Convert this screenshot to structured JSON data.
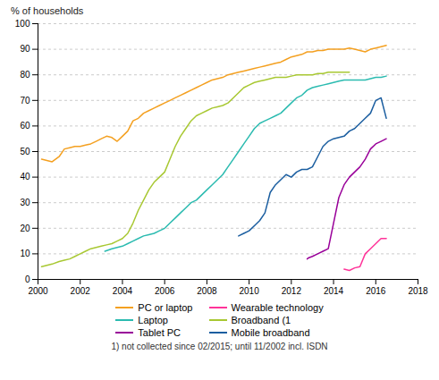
{
  "chart_data": {
    "type": "line",
    "ylabel": "% of households",
    "footnote": "1) not collected since 02/2015; until 11/2002 incl. ISDN",
    "xlim": [
      2000,
      2018
    ],
    "ylim": [
      0,
      100
    ],
    "xticks": [
      2000,
      2002,
      2004,
      2006,
      2008,
      2010,
      2012,
      2014,
      2016,
      2018
    ],
    "yticks": [
      0,
      10,
      20,
      30,
      40,
      50,
      60,
      70,
      80,
      90,
      100
    ],
    "grid": true,
    "legend": "bottom",
    "series": [
      {
        "name": "PC or laptop",
        "color": "#F4A020",
        "x": [
          2000.17,
          2000.42,
          2000.67,
          2001.0,
          2001.25,
          2001.5,
          2001.75,
          2002.0,
          2002.25,
          2002.5,
          2002.75,
          2003.0,
          2003.25,
          2003.5,
          2003.75,
          2004.0,
          2004.25,
          2004.5,
          2004.75,
          2005.0,
          2005.25,
          2005.5,
          2005.75,
          2006.0,
          2006.25,
          2006.5,
          2006.75,
          2007.0,
          2007.25,
          2007.5,
          2007.75,
          2008.0,
          2008.25,
          2008.5,
          2008.75,
          2009.0,
          2009.25,
          2009.5,
          2009.75,
          2010.0,
          2010.25,
          2010.5,
          2010.75,
          2011.0,
          2011.25,
          2011.5,
          2011.75,
          2012.0,
          2012.25,
          2012.5,
          2012.75,
          2013.0,
          2013.25,
          2013.5,
          2013.75,
          2014.0,
          2014.25,
          2014.5,
          2014.75,
          2015.0,
          2015.25,
          2015.5,
          2015.75,
          2016.0,
          2016.25,
          2016.5
        ],
        "values": [
          47,
          46.5,
          46,
          48,
          51,
          51.5,
          52,
          52,
          52.5,
          53,
          54,
          55,
          56,
          55.5,
          54,
          56,
          58,
          62,
          63,
          65,
          66,
          67,
          68,
          69,
          70,
          71,
          72,
          73,
          74,
          75,
          76,
          77,
          78,
          78.5,
          79,
          80,
          80.5,
          81,
          81.5,
          82,
          82.5,
          83,
          83.5,
          84,
          84.5,
          85,
          86,
          87,
          87.5,
          88,
          89,
          89,
          89.5,
          89.5,
          90,
          90,
          90,
          90,
          90.5,
          90,
          89.5,
          89,
          90,
          90.5,
          91,
          91.5
        ]
      },
      {
        "name": "Laptop",
        "color": "#2BBBB0",
        "x": [
          2003.17,
          2003.5,
          2003.75,
          2004.0,
          2004.25,
          2004.5,
          2004.75,
          2005.0,
          2005.25,
          2005.5,
          2005.75,
          2006.0,
          2006.25,
          2006.5,
          2006.75,
          2007.0,
          2007.25,
          2007.5,
          2007.75,
          2008.0,
          2008.25,
          2008.5,
          2008.75,
          2009.0,
          2009.25,
          2009.5,
          2009.75,
          2010.0,
          2010.25,
          2010.5,
          2010.75,
          2011.0,
          2011.25,
          2011.5,
          2011.75,
          2012.0,
          2012.25,
          2012.5,
          2012.75,
          2013.0,
          2013.25,
          2013.5,
          2013.75,
          2014.0,
          2014.25,
          2014.5,
          2014.75,
          2015.0,
          2015.25,
          2015.5,
          2015.75,
          2016.0,
          2016.25,
          2016.5
        ],
        "values": [
          11,
          12,
          12.5,
          13,
          14,
          15,
          16,
          17,
          17.5,
          18,
          19,
          20,
          22,
          24,
          26,
          28,
          30,
          31,
          33,
          35,
          37,
          39,
          41,
          44,
          47,
          50,
          53,
          56,
          59,
          61,
          62,
          63,
          64,
          65,
          67,
          69,
          71,
          72,
          74,
          75,
          75.5,
          76,
          76.5,
          77,
          77.5,
          78,
          78,
          78,
          78,
          78,
          78.5,
          79,
          79,
          79.5
        ]
      },
      {
        "name": "Tablet PC",
        "color": "#990099",
        "x": [
          2012.75,
          2012.83,
          2013.0,
          2013.25,
          2013.5,
          2013.75,
          2014.0,
          2014.25,
          2014.5,
          2014.75,
          2015.0,
          2015.25,
          2015.5,
          2015.75,
          2016.0,
          2016.25,
          2016.5
        ],
        "values": [
          8,
          8.5,
          9,
          10,
          11,
          12,
          22,
          32,
          37,
          40,
          42,
          44,
          47,
          51,
          53,
          54,
          55
        ]
      },
      {
        "name": "Wearable technology",
        "color": "#FF3399",
        "x": [
          2014.5,
          2014.75,
          2015.0,
          2015.25,
          2015.5,
          2015.75,
          2016.0,
          2016.25,
          2016.5
        ],
        "values": [
          4,
          3.5,
          4.5,
          5,
          10,
          12,
          14,
          16,
          16
        ]
      },
      {
        "name": "Broadband (1",
        "color": "#A8C832",
        "x": [
          2000.17,
          2000.42,
          2000.67,
          2001.0,
          2001.25,
          2001.5,
          2001.75,
          2002.0,
          2002.25,
          2002.5,
          2002.75,
          2003.0,
          2003.25,
          2003.5,
          2003.75,
          2004.0,
          2004.25,
          2004.5,
          2004.75,
          2005.0,
          2005.25,
          2005.5,
          2005.75,
          2006.0,
          2006.25,
          2006.5,
          2006.75,
          2007.0,
          2007.25,
          2007.5,
          2007.75,
          2008.0,
          2008.25,
          2008.5,
          2008.75,
          2009.0,
          2009.25,
          2009.5,
          2009.75,
          2010.0,
          2010.25,
          2010.5,
          2010.75,
          2011.0,
          2011.25,
          2011.5,
          2011.75,
          2012.0,
          2012.25,
          2012.5,
          2012.75,
          2013.0,
          2013.25,
          2013.5,
          2013.75,
          2014.0,
          2014.25,
          2014.5,
          2014.75
        ],
        "values": [
          5,
          5.5,
          6,
          7,
          7.5,
          8,
          9,
          10,
          11,
          12,
          12.5,
          13,
          13.5,
          14,
          15,
          16,
          18,
          22,
          27,
          31,
          35,
          38,
          40,
          42,
          47,
          52,
          56,
          59,
          62,
          64,
          65,
          66,
          67,
          67.5,
          68,
          69,
          71,
          73,
          75,
          76,
          77,
          77.5,
          78,
          78.5,
          79,
          79,
          79,
          79.5,
          80,
          80,
          80,
          80,
          80.5,
          80.5,
          81,
          81,
          81,
          81,
          81
        ]
      },
      {
        "name": "Mobile broadband",
        "color": "#1B5EA0",
        "x": [
          2009.5,
          2009.75,
          2010.0,
          2010.25,
          2010.5,
          2010.75,
          2011.0,
          2011.25,
          2011.5,
          2011.75,
          2012.0,
          2012.25,
          2012.5,
          2012.75,
          2013.0,
          2013.25,
          2013.5,
          2013.75,
          2014.0,
          2014.25,
          2014.5,
          2014.75,
          2015.0,
          2015.25,
          2015.5,
          2015.75,
          2016.0,
          2016.25,
          2016.5
        ],
        "values": [
          17,
          18,
          19,
          21,
          23,
          26,
          34,
          37,
          39,
          41,
          40,
          42,
          43,
          43,
          44,
          48,
          52,
          54,
          55,
          55.5,
          56,
          58,
          59,
          61,
          63,
          65,
          70,
          71,
          63
        ]
      }
    ]
  }
}
